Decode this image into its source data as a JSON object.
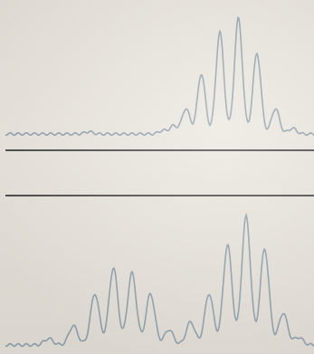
{
  "photo": {
    "paper_color": "#e8e4dc",
    "trace_color": "#8ea0ad",
    "rule_color": "#4a4a4a",
    "traces": [
      {
        "peaks": [
          {
            "x": 0.27,
            "h": 0.02
          },
          {
            "x": 0.51,
            "h": 0.03
          },
          {
            "x": 0.545,
            "h": 0.07
          },
          {
            "x": 0.585,
            "h": 0.22
          },
          {
            "x": 0.635,
            "h": 0.52
          },
          {
            "x": 0.695,
            "h": 0.88
          },
          {
            "x": 0.755,
            "h": 1.0
          },
          {
            "x": 0.815,
            "h": 0.7
          },
          {
            "x": 0.875,
            "h": 0.22
          },
          {
            "x": 0.93,
            "h": 0.05
          }
        ]
      },
      {
        "peaks": [
          {
            "x": 0.14,
            "h": 0.05
          },
          {
            "x": 0.22,
            "h": 0.15
          },
          {
            "x": 0.29,
            "h": 0.4
          },
          {
            "x": 0.35,
            "h": 0.6
          },
          {
            "x": 0.41,
            "h": 0.56
          },
          {
            "x": 0.47,
            "h": 0.4
          },
          {
            "x": 0.53,
            "h": 0.12
          },
          {
            "x": 0.6,
            "h": 0.18
          },
          {
            "x": 0.66,
            "h": 0.4
          },
          {
            "x": 0.72,
            "h": 0.78
          },
          {
            "x": 0.78,
            "h": 1.0
          },
          {
            "x": 0.84,
            "h": 0.75
          },
          {
            "x": 0.9,
            "h": 0.25
          },
          {
            "x": 0.95,
            "h": 0.06
          }
        ]
      }
    ]
  }
}
